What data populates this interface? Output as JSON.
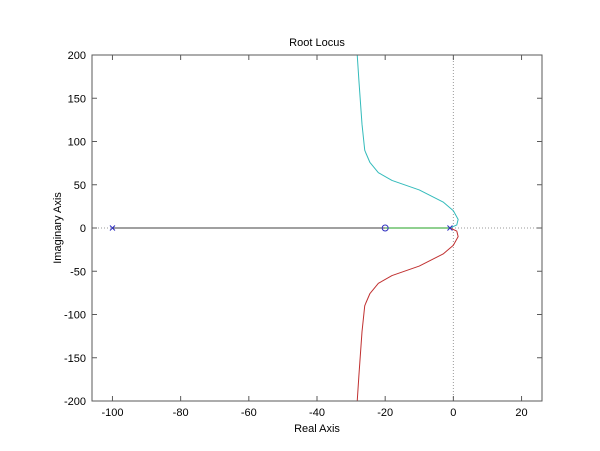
{
  "chart_data": {
    "type": "line",
    "title": "Root Locus",
    "xlabel": "Real Axis",
    "ylabel": "Imaginary Axis",
    "xlim": [
      -106,
      26
    ],
    "ylim": [
      -200,
      200
    ],
    "xticks": [
      -100,
      -80,
      -60,
      -40,
      -20,
      0,
      20
    ],
    "yticks": [
      -200,
      -150,
      -100,
      -50,
      0,
      50,
      100,
      150,
      200
    ],
    "grid": false,
    "colors": {
      "upper_branch": "#33bbbb",
      "lower_branch": "#c03030",
      "real_branch": "#20a020",
      "dark_branch": "#404040",
      "markers": "#3030c0",
      "zero_lines": "#9a9a9a",
      "axes": "#5a5a5a"
    },
    "series": [
      {
        "x": [
          -28.2,
          -27.7,
          -26.8,
          -26.0,
          -25.7,
          -24.5,
          -22.0,
          -18.0,
          -10.0,
          -3.0,
          0.0,
          1.4,
          1.0,
          -1.0
        ],
        "y": [
          200,
          170,
          120,
          90,
          87,
          76,
          64,
          55,
          44,
          30,
          20,
          10,
          3.5,
          0
        ]
      },
      {
        "x": [
          -28.2,
          -27.7,
          -26.8,
          -26.0,
          -25.7,
          -24.5,
          -22.0,
          -18.0,
          -10.0,
          -3.0,
          0.0,
          1.4,
          1.0,
          -1.0
        ],
        "y": [
          -200,
          -170,
          -120,
          -90,
          -87,
          -76,
          -64,
          -55,
          -44,
          -30,
          -20,
          -10,
          -3.5,
          0
        ]
      },
      {
        "x": [
          -20,
          -1
        ],
        "y": [
          0,
          0
        ]
      },
      {
        "x": [
          -100,
          -20
        ],
        "y": [
          0,
          0
        ]
      }
    ],
    "poles": [
      {
        "x": -100,
        "y": 0
      },
      {
        "x": -1,
        "y": 0
      }
    ],
    "zeros": [
      {
        "x": -20,
        "y": 0
      }
    ]
  }
}
